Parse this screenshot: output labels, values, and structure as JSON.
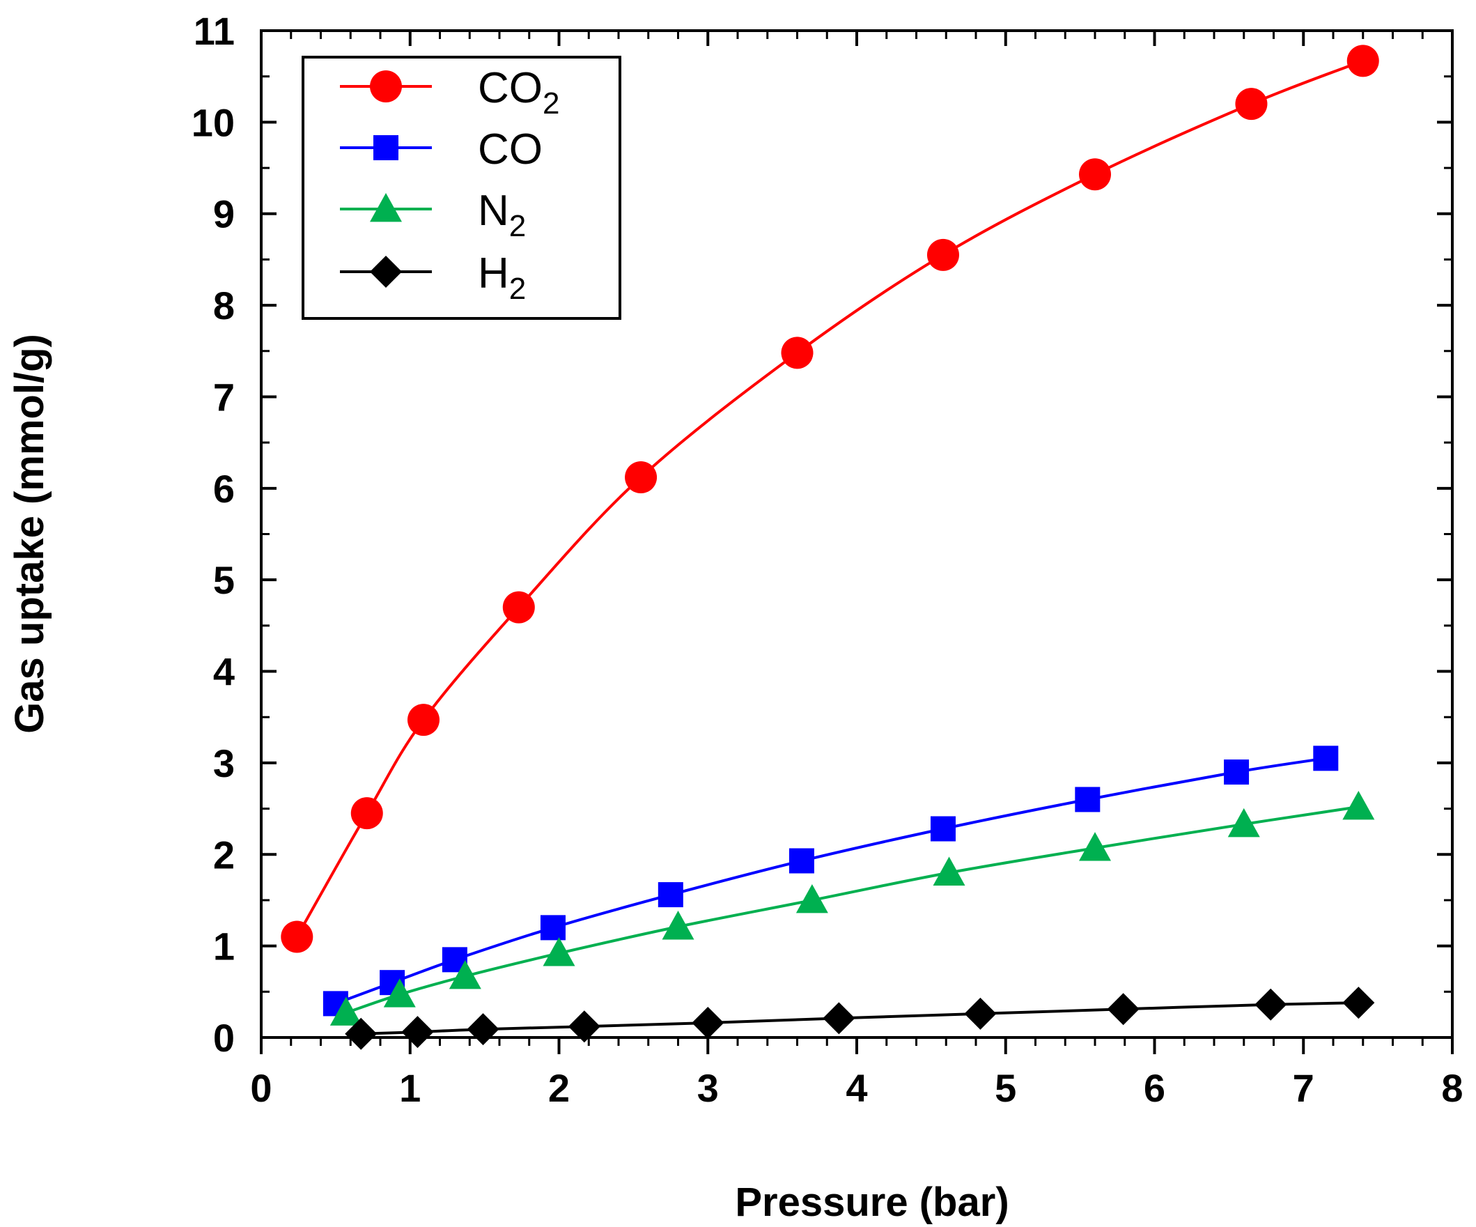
{
  "chart_data": {
    "type": "line",
    "title": "",
    "xlabel": "Pressure (bar)",
    "ylabel": "Gas uptake (mmol/g)",
    "xlim": [
      0,
      8
    ],
    "ylim": [
      0,
      11
    ],
    "xticks": [
      "0",
      "1",
      "2",
      "3",
      "4",
      "5",
      "6",
      "7",
      "8"
    ],
    "yticks": [
      "0",
      "1",
      "2",
      "3",
      "4",
      "5",
      "6",
      "7",
      "8",
      "9",
      "10",
      "11"
    ],
    "grid": false,
    "legend_position": "top-left",
    "series": [
      {
        "name": "CO2",
        "label_main": "CO",
        "label_sub": "2",
        "color": "#ff0000",
        "marker": "circle",
        "x": [
          0.24,
          0.71,
          1.09,
          1.73,
          2.55,
          3.6,
          4.58,
          5.6,
          6.65,
          7.4
        ],
        "y": [
          1.1,
          2.45,
          3.47,
          4.7,
          6.12,
          7.48,
          8.55,
          9.43,
          10.2,
          10.67
        ]
      },
      {
        "name": "CO",
        "label_main": "CO",
        "label_sub": "",
        "color": "#0000ff",
        "marker": "square",
        "x": [
          0.5,
          0.88,
          1.3,
          1.96,
          2.75,
          3.63,
          4.58,
          5.55,
          6.55,
          7.15
        ],
        "y": [
          0.37,
          0.6,
          0.85,
          1.2,
          1.56,
          1.93,
          2.28,
          2.6,
          2.9,
          3.05
        ]
      },
      {
        "name": "N2",
        "label_main": "N",
        "label_sub": "2",
        "color": "#00b050",
        "marker": "triangle",
        "x": [
          0.57,
          0.93,
          1.37,
          2.0,
          2.8,
          3.7,
          4.62,
          5.6,
          6.6,
          7.37
        ],
        "y": [
          0.27,
          0.47,
          0.67,
          0.92,
          1.21,
          1.5,
          1.8,
          2.07,
          2.33,
          2.52
        ]
      },
      {
        "name": "H2",
        "label_main": "H",
        "label_sub": "2",
        "color": "#000000",
        "marker": "diamond",
        "x": [
          0.67,
          1.05,
          1.49,
          2.17,
          3.0,
          3.88,
          4.83,
          5.79,
          6.78,
          7.37
        ],
        "y": [
          0.04,
          0.06,
          0.09,
          0.12,
          0.16,
          0.21,
          0.26,
          0.31,
          0.36,
          0.38
        ]
      }
    ]
  }
}
